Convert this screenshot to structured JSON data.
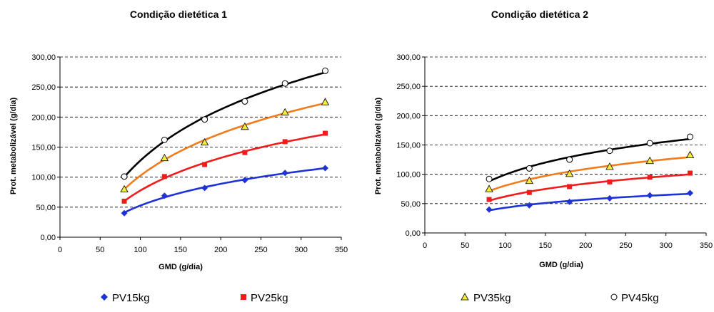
{
  "colors": {
    "PV15kg": "#1f32d6",
    "PV25kg": "#ef1c1c",
    "PV35kg": "#f07c1e",
    "PV45kg": "#000000",
    "PV35kg_marker_fill": "#f5ec3c",
    "grid": "#000000"
  },
  "legend": {
    "placement": "bottom",
    "items": [
      {
        "label": "PV15kg",
        "marker": "diamond",
        "color": "#1f32d6"
      },
      {
        "label": "PV25kg",
        "marker": "square",
        "color": "#ef1c1c"
      },
      {
        "label": "PV35kg",
        "marker": "triangle",
        "color": "#f5ec3c"
      },
      {
        "label": "PV45kg",
        "marker": "circle-open",
        "color": "#000000"
      }
    ]
  },
  "chart_data": [
    {
      "type": "scatter",
      "title": "Condição dietética 1",
      "xlabel": "GMD (g/dia)",
      "ylabel": "Prot. metabolizável (g/dia)",
      "xlim": [
        0,
        350
      ],
      "ylim": [
        0,
        300
      ],
      "xticks": [
        "0",
        "50",
        "100",
        "150",
        "200",
        "250",
        "300",
        "350"
      ],
      "yticks": [
        "0,00",
        "50,00",
        "100,00",
        "150,00",
        "200,00",
        "250,00",
        "300,00"
      ],
      "grid": "horizontal dashed",
      "x": [
        80,
        130,
        180,
        230,
        280,
        330
      ],
      "series": [
        {
          "name": "PV15kg",
          "values": [
            40,
            69,
            82,
            95,
            107,
            115
          ]
        },
        {
          "name": "PV25kg",
          "values": [
            60,
            101,
            121,
            141,
            159,
            173
          ]
        },
        {
          "name": "PV35kg",
          "values": [
            80,
            132,
            158,
            184,
            208,
            225
          ]
        },
        {
          "name": "PV45kg",
          "values": [
            101,
            162,
            196,
            226,
            256,
            277
          ]
        }
      ]
    },
    {
      "type": "scatter",
      "title": "Condição dietética 2",
      "xlabel": "GMD (g/dia)",
      "ylabel": "Prot. metabolizável (g/dia)",
      "xlim": [
        0,
        350
      ],
      "ylim": [
        0,
        300
      ],
      "xticks": [
        "0",
        "50",
        "100",
        "150",
        "200",
        "250",
        "300",
        "350"
      ],
      "yticks": [
        "0,00",
        "50,00",
        "100,00",
        "150,00",
        "200,00",
        "250,00",
        "300,00"
      ],
      "grid": "horizontal dashed",
      "x": [
        80,
        130,
        180,
        230,
        280,
        330
      ],
      "series": [
        {
          "name": "PV15kg",
          "values": [
            40,
            47,
            53,
            59,
            64,
            68
          ]
        },
        {
          "name": "PV25kg",
          "values": [
            57,
            69,
            79,
            87,
            95,
            102
          ]
        },
        {
          "name": "PV35kg",
          "values": [
            75,
            89,
            101,
            113,
            123,
            133
          ]
        },
        {
          "name": "PV45kg",
          "values": [
            92,
            110,
            125,
            140,
            153,
            164
          ]
        }
      ]
    }
  ]
}
